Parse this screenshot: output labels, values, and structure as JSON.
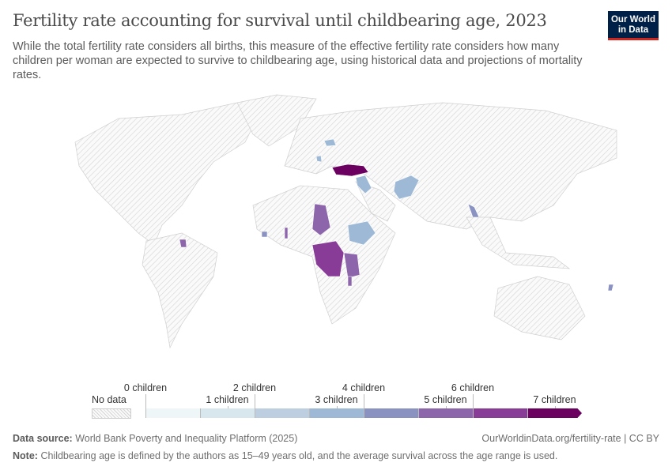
{
  "header": {
    "title": "Fertility rate accounting for survival until childbearing age, 2023",
    "subtitle": "While the total fertility rate considers all births, this measure of the effective fertility rate considers how many children per woman are expected to survive to childbearing age, using historical data and projections of mortality rates.",
    "logo": "Our World in Data"
  },
  "legend": {
    "no_data": "No data",
    "labels": [
      "0 children",
      "1 children",
      "2 children",
      "3 children",
      "4 children",
      "5 children",
      "6 children",
      "7 children"
    ],
    "colors": [
      "#eef6f7",
      "#d8e7ee",
      "#bccee0",
      "#9db9d6",
      "#8a92c2",
      "#8c65ab",
      "#883c98",
      "#6b0060"
    ],
    "no_data_color": "#e6e6e6"
  },
  "map": {
    "countries": [
      {
        "id": "turkey",
        "bin": 7
      },
      {
        "id": "moldova",
        "bin": 3
      },
      {
        "id": "iraq",
        "bin": 3
      },
      {
        "id": "pakistan",
        "bin": 3
      },
      {
        "id": "ethiopia",
        "bin": 3
      },
      {
        "id": "chad",
        "bin": 5
      },
      {
        "id": "dr-congo",
        "bin": 6
      },
      {
        "id": "tanzania",
        "bin": 5
      },
      {
        "id": "laos",
        "bin": 4
      },
      {
        "id": "guyana",
        "bin": 5
      },
      {
        "id": "togo",
        "bin": 5
      },
      {
        "id": "liberia",
        "bin": 4
      },
      {
        "id": "burundi",
        "bin": 6
      },
      {
        "id": "malawi",
        "bin": 5
      },
      {
        "id": "vanuatu",
        "bin": 4
      },
      {
        "id": "bosnia",
        "bin": 3
      }
    ]
  },
  "footer": {
    "source_label": "Data source:",
    "source": "World Bank Poverty and Inequality Platform (2025)",
    "url": "OurWorldinData.org/fertility-rate | CC BY",
    "note_label": "Note:",
    "note": "Childbearing age is defined by the authors as 15–49 years old, and the average survival across the age range is used."
  }
}
